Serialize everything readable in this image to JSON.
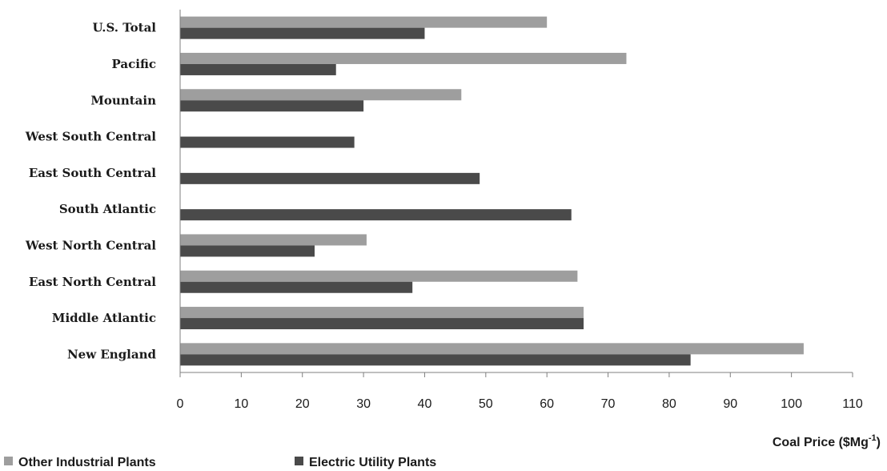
{
  "chart_data": {
    "type": "bar",
    "orientation": "horizontal",
    "categories": [
      "U.S. Total",
      "Pacific",
      "Mountain",
      "West South Central",
      "East South Central",
      "South Atlantic",
      "West North Central",
      "East North Central",
      "Middle Atlantic",
      "New England"
    ],
    "series": [
      {
        "name": "Other Industrial Plants",
        "color": "#9e9e9e",
        "values": [
          60,
          73,
          46,
          null,
          null,
          null,
          30.5,
          65,
          66,
          102
        ]
      },
      {
        "name": "Electric Utility Plants",
        "color": "#4a4a4a",
        "values": [
          40,
          25.5,
          30,
          28.5,
          49,
          64,
          22,
          38,
          66,
          83.5
        ]
      }
    ],
    "xlabel": "Coal Price ($Mg",
    "xlabel_sup": "-1",
    "xlabel_close": ")",
    "xlim": [
      0,
      110
    ],
    "xticks": [
      0,
      10,
      20,
      30,
      40,
      50,
      60,
      70,
      80,
      90,
      100,
      110
    ],
    "grid": false,
    "legend_position": "bottom-left"
  }
}
